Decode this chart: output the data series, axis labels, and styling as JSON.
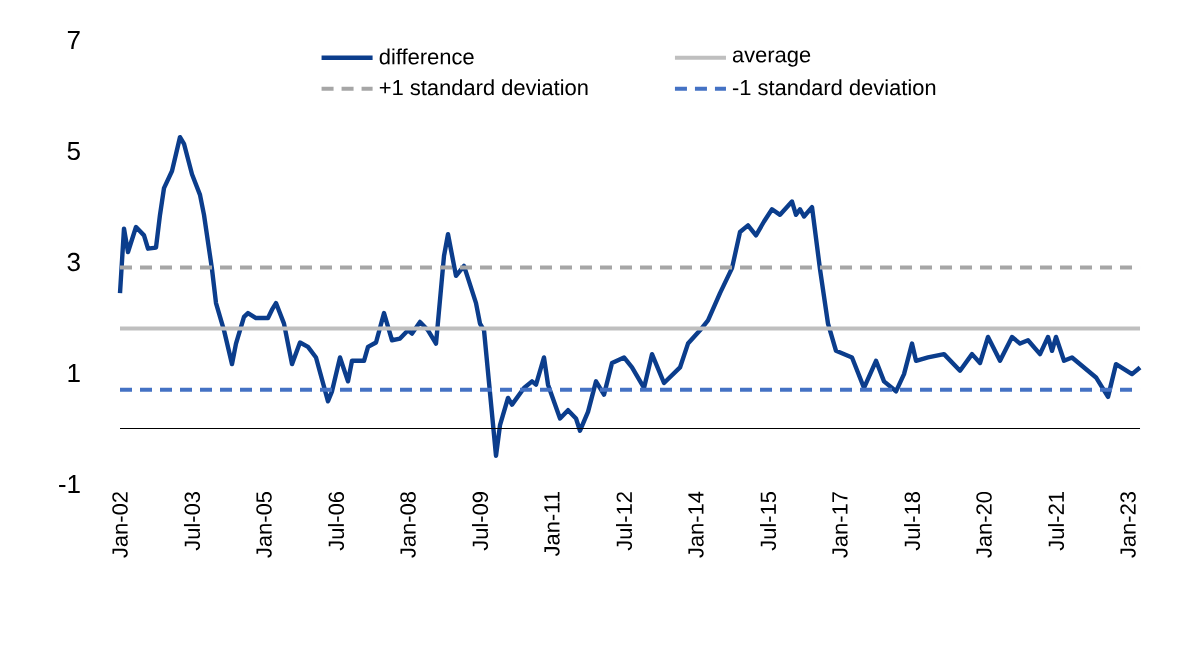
{
  "chart_data": {
    "type": "line",
    "xlim": [
      "2002-01",
      "2023-04"
    ],
    "ylim": [
      -1,
      7
    ],
    "yticks": [
      -1,
      1,
      3,
      5,
      7
    ],
    "xticks": [
      {
        "value": "2002-01",
        "label": "Jan-02"
      },
      {
        "value": "2003-07",
        "label": "Jul-03"
      },
      {
        "value": "2005-01",
        "label": "Jan-05"
      },
      {
        "value": "2006-07",
        "label": "Jul-06"
      },
      {
        "value": "2008-01",
        "label": "Jan-08"
      },
      {
        "value": "2009-07",
        "label": "Jul-09"
      },
      {
        "value": "2011-01",
        "label": "Jan-11"
      },
      {
        "value": "2012-07",
        "label": "Jul-12"
      },
      {
        "value": "2014-01",
        "label": "Jan-14"
      },
      {
        "value": "2015-07",
        "label": "Jul-15"
      },
      {
        "value": "2017-01",
        "label": "Jan-17"
      },
      {
        "value": "2018-07",
        "label": "Jul-18"
      },
      {
        "value": "2020-01",
        "label": "Jan-20"
      },
      {
        "value": "2021-07",
        "label": "Jul-21"
      },
      {
        "value": "2023-01",
        "label": "Jan-23"
      }
    ],
    "legend": "top",
    "grid": false,
    "marker": "none",
    "series": [
      {
        "name": "difference",
        "color": "#0b3d8c",
        "line_style": "solid",
        "x": [
          "2002-01",
          "2002-02",
          "2002-03",
          "2002-05",
          "2002-07",
          "2002-08",
          "2002-10",
          "2002-11",
          "2002-12",
          "2003-02",
          "2003-04",
          "2003-05",
          "2003-07",
          "2003-09",
          "2003-10",
          "2003-12",
          "2004-01",
          "2004-03",
          "2004-05",
          "2004-06",
          "2004-08",
          "2004-09",
          "2004-11",
          "2005-02",
          "2005-03",
          "2005-04",
          "2005-06",
          "2005-08",
          "2005-10",
          "2005-12",
          "2006-02",
          "2006-05",
          "2006-06",
          "2006-08",
          "2006-10",
          "2006-11",
          "2007-02",
          "2007-03",
          "2007-05",
          "2007-07",
          "2007-09",
          "2007-11",
          "2008-01",
          "2008-02",
          "2008-04",
          "2008-06",
          "2008-08",
          "2008-10",
          "2008-11",
          "2009-01",
          "2009-03",
          "2009-06",
          "2009-07",
          "2009-08",
          "2009-11",
          "2009-12",
          "2010-02",
          "2010-03",
          "2010-06",
          "2010-08",
          "2010-09",
          "2010-11",
          "2010-12",
          "2011-03",
          "2011-05",
          "2011-07",
          "2011-08",
          "2011-10",
          "2011-12",
          "2012-02",
          "2012-04",
          "2012-07",
          "2012-09",
          "2012-12",
          "2013-02",
          "2013-05",
          "2013-09",
          "2013-11",
          "2014-02",
          "2014-04",
          "2014-07",
          "2014-10",
          "2014-12",
          "2015-02",
          "2015-04",
          "2015-06",
          "2015-08",
          "2015-10",
          "2016-01",
          "2016-02",
          "2016-03",
          "2016-04",
          "2016-06",
          "2016-08",
          "2016-10",
          "2016-12",
          "2017-04",
          "2017-07",
          "2017-10",
          "2017-12",
          "2018-03",
          "2018-05",
          "2018-07",
          "2018-08",
          "2018-11",
          "2019-03",
          "2019-07",
          "2019-10",
          "2019-12",
          "2020-02",
          "2020-05",
          "2020-08",
          "2020-10",
          "2020-12",
          "2021-03",
          "2021-05",
          "2021-06",
          "2021-07",
          "2021-09",
          "2021-11",
          "2022-02",
          "2022-05",
          "2022-08",
          "2022-10",
          "2023-02",
          "2023-04"
        ],
        "values": [
          2.44,
          3.6,
          3.18,
          3.63,
          3.48,
          3.24,
          3.26,
          3.85,
          4.33,
          4.64,
          5.25,
          5.13,
          4.58,
          4.21,
          3.85,
          2.87,
          2.26,
          1.77,
          1.16,
          1.53,
          2.01,
          2.08,
          1.99,
          1.99,
          2.14,
          2.26,
          1.89,
          1.16,
          1.55,
          1.47,
          1.28,
          0.49,
          0.67,
          1.28,
          0.85,
          1.22,
          1.22,
          1.47,
          1.55,
          2.08,
          1.59,
          1.62,
          1.77,
          1.71,
          1.92,
          1.77,
          1.53,
          3.11,
          3.5,
          2.75,
          2.93,
          2.26,
          1.89,
          1.77,
          -0.49,
          0.06,
          0.55,
          0.43,
          0.73,
          0.85,
          0.79,
          1.28,
          0.79,
          0.18,
          0.33,
          0.18,
          -0.04,
          0.3,
          0.85,
          0.61,
          1.18,
          1.28,
          1.1,
          0.73,
          1.34,
          0.82,
          1.1,
          1.53,
          1.77,
          1.95,
          2.44,
          2.89,
          3.54,
          3.66,
          3.48,
          3.73,
          3.95,
          3.85,
          4.09,
          3.85,
          3.95,
          3.82,
          3.99,
          2.87,
          1.89,
          1.4,
          1.28,
          0.73,
          1.22,
          0.85,
          0.67,
          0.98,
          1.53,
          1.22,
          1.28,
          1.34,
          1.04,
          1.34,
          1.18,
          1.65,
          1.22,
          1.65,
          1.53,
          1.59,
          1.34,
          1.65,
          1.4,
          1.65,
          1.22,
          1.28,
          1.1,
          0.92,
          0.57,
          1.16,
          0.98,
          1.1
        ]
      },
      {
        "name": "average",
        "color": "#bfbfbf",
        "line_style": "solid",
        "x": [
          "2002-01",
          "2023-04"
        ],
        "values": [
          1.8,
          1.8
        ]
      },
      {
        "name": "+1 standard deviation",
        "color": "#a6a6a6",
        "line_style": "dashed",
        "x": [
          "2002-01",
          "2023-04"
        ],
        "values": [
          2.9,
          2.9
        ]
      },
      {
        "name": "-1 standard deviation",
        "color": "#4472c4",
        "line_style": "dashed",
        "x": [
          "2002-01",
          "2023-04"
        ],
        "values": [
          0.7,
          0.7
        ]
      }
    ]
  }
}
